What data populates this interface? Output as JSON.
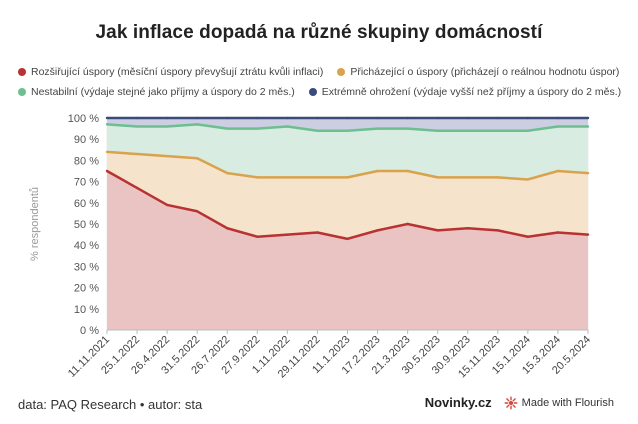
{
  "title": "Jak inflace dopadá na různé skupiny domácností",
  "footer": {
    "source": "data: PAQ Research • autor: sta",
    "brand": "Novinky.cz",
    "made_with": "Made with Flourish"
  },
  "chart_data": {
    "type": "area",
    "stacked": true,
    "ylabel": "% respondentů",
    "ylim": [
      0,
      100
    ],
    "yticks": [
      0,
      10,
      20,
      30,
      40,
      50,
      60,
      70,
      80,
      90,
      100
    ],
    "ytick_labels": [
      "0 %",
      "10 %",
      "20 %",
      "30 %",
      "40 %",
      "50 %",
      "60 %",
      "70 %",
      "80 %",
      "90 %",
      "100 %"
    ],
    "grid": true,
    "legend_position": "top",
    "categories": [
      "11.11.2021",
      "25.1.2022",
      "26.4.2022",
      "31.5.2022",
      "26.7.2022",
      "27.9.2022",
      "1.11.2022",
      "29.11.2022",
      "11.1.2023",
      "17.2.2023",
      "21.3.2023",
      "30.5.2023",
      "30.9.2023",
      "15.11.2023",
      "15.1.2024",
      "15.3.2024",
      "20.5.2024"
    ],
    "series": [
      {
        "name": "Rozšiřující úspory (měsíční úspory převyšují ztrátu kvůli inflaci)",
        "color": "#b83232",
        "fill": "#e8c1c0",
        "cumulative": [
          75,
          67,
          59,
          56,
          48,
          44,
          45,
          46,
          43,
          47,
          50,
          47,
          48,
          47,
          44,
          46,
          45
        ]
      },
      {
        "name": "Přicházející o úspory (přicházejí o reálnou hodnotu úspor)",
        "color": "#d9a24c",
        "fill": "#f5e2c8",
        "cumulative": [
          84,
          83,
          82,
          81,
          74,
          72,
          72,
          72,
          72,
          75,
          75,
          72,
          72,
          72,
          71,
          75,
          74
        ]
      },
      {
        "name": "Nestabilní (výdaje stejné jako příjmy a úspory do 2 měs.)",
        "color": "#6dbf8f",
        "fill": "#d6ebe0",
        "cumulative": [
          97,
          96,
          96,
          97,
          95,
          95,
          96,
          94,
          94,
          95,
          95,
          94,
          94,
          94,
          94,
          96,
          96
        ]
      },
      {
        "name": "Extrémně ohrožení (výdaje vyšší než příjmy a úspory do 2 měs.)",
        "color": "#3b4a7a",
        "fill": "#c9cbe0",
        "cumulative": [
          100,
          100,
          100,
          100,
          100,
          100,
          100,
          100,
          100,
          100,
          100,
          100,
          100,
          100,
          100,
          100,
          100
        ]
      }
    ]
  }
}
